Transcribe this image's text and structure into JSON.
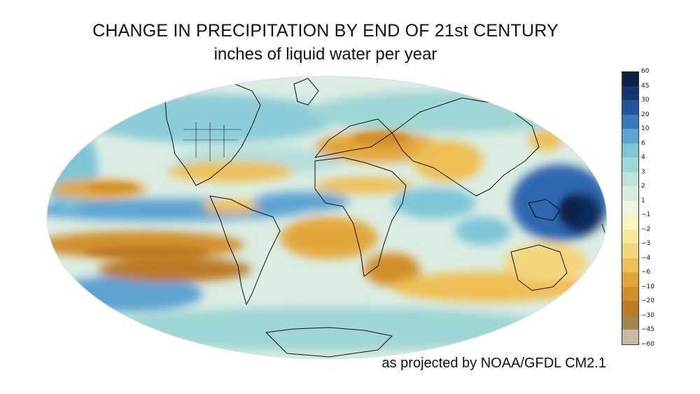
{
  "title": "CHANGE IN PRECIPITATION BY END OF 21st CENTURY",
  "subtitle": "inches of liquid water per year",
  "credit": "as projected by NOAA/GFDL CM2.1",
  "legend": {
    "ticks": [
      "60",
      "45",
      "30",
      "20",
      "10",
      "6",
      "4",
      "3",
      "2",
      "1",
      "−1",
      "−2",
      "−3",
      "−4",
      "−6",
      "−10",
      "−20",
      "−30",
      "−45",
      "−60"
    ],
    "colors": [
      "#0b2244",
      "#17356e",
      "#2454a0",
      "#3c78bd",
      "#5da3d2",
      "#7ec4d8",
      "#9fd6d6",
      "#bde4d8",
      "#d7eedf",
      "#eef6e2",
      "#fbf3bf",
      "#f9e79a",
      "#f5d57a",
      "#eebf55",
      "#e3a63a",
      "#d18e2b",
      "#bb7a26",
      "#a3844f",
      "#c7b9a4"
    ]
  },
  "colors": {
    "ocean_base": "#dceee4",
    "drying": "#e3a63a",
    "wetting": "#5da3d2",
    "coast": "#111111"
  }
}
